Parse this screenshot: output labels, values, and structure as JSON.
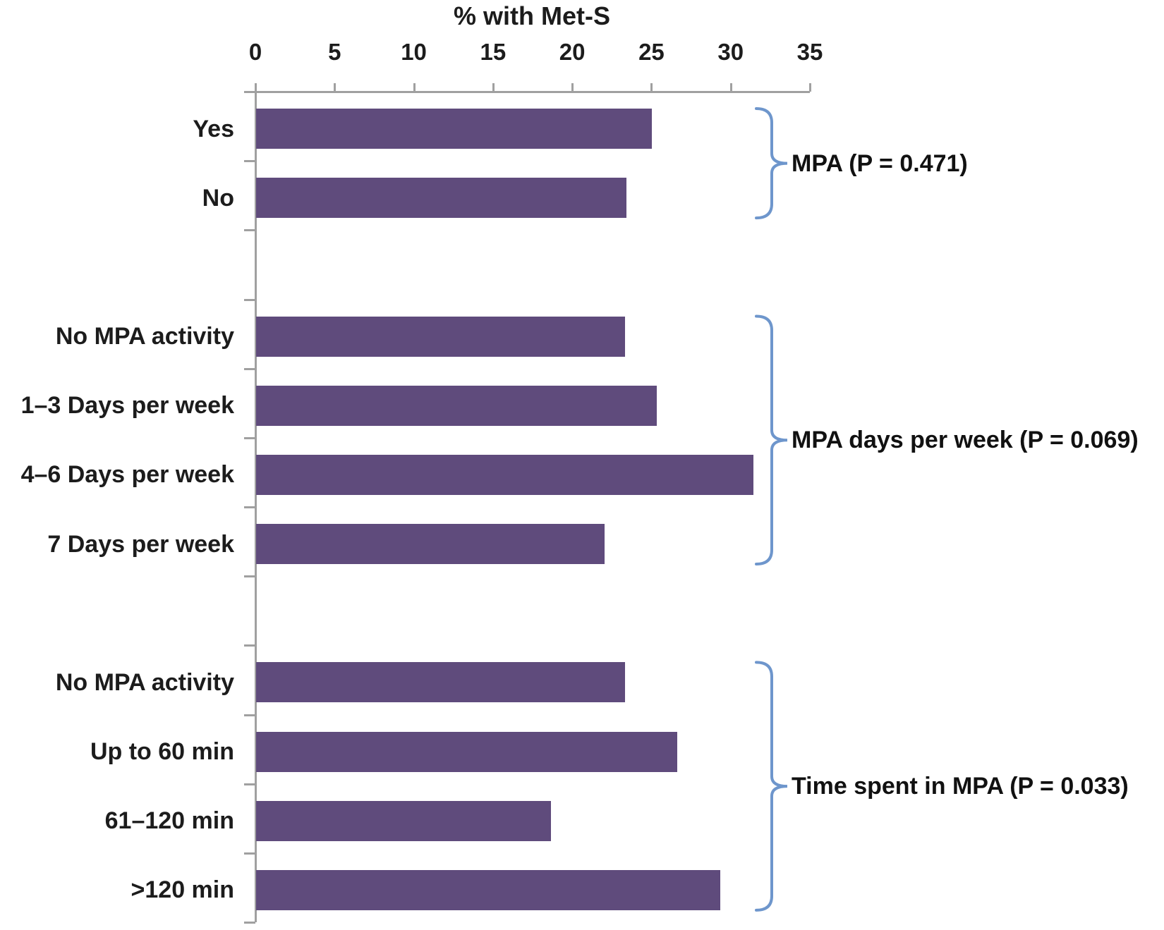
{
  "chart_data": {
    "type": "bar",
    "orientation": "horizontal",
    "title": "% with Met-S",
    "value_axis_label": "% with Met-S",
    "xlim": [
      0,
      35
    ],
    "xticks": [
      0,
      5,
      10,
      15,
      20,
      25,
      30,
      35
    ],
    "grid": false,
    "legend": "none",
    "bar_color": "#5f4b7c",
    "axis_color": "#a0a0a0",
    "bracket_color": "#6e96cc",
    "text_color": "#1c1c1c",
    "groups": [
      {
        "bracket_label": "MPA (P = 0.471)",
        "items": [
          {
            "category": "Yes",
            "value": 25.0
          },
          {
            "category": "No",
            "value": 23.4
          }
        ]
      },
      {
        "bracket_label": "MPA days per week (P = 0.069)",
        "items": [
          {
            "category": "No MPA activity",
            "value": 23.3
          },
          {
            "category": "1–3 Days per week",
            "value": 25.3
          },
          {
            "category": "4–6 Days per week",
            "value": 31.4
          },
          {
            "category": "7 Days per week",
            "value": 22.0
          }
        ]
      },
      {
        "bracket_label": "Time spent in MPA (P = 0.033)",
        "items": [
          {
            "category": "No MPA activity",
            "value": 23.3
          },
          {
            "category": "Up to 60 min",
            "value": 26.6
          },
          {
            "category": "61–120 min",
            "value": 18.6
          },
          {
            "category": ">120 min",
            "value": 29.3
          }
        ]
      }
    ]
  }
}
